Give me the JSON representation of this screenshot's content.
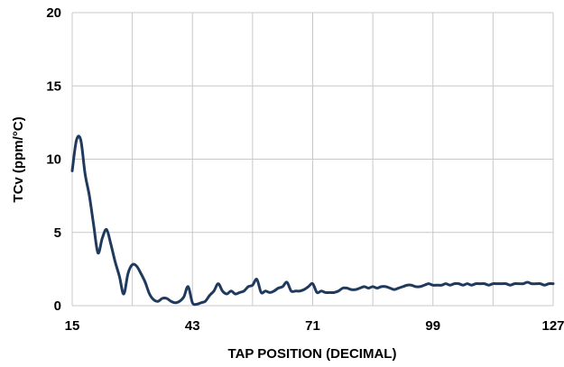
{
  "chart_data": {
    "type": "line",
    "title": "",
    "xlabel": "TAP POSITION (DECIMAL)",
    "ylabel": "TCv (ppm/°C)",
    "xlim": [
      15,
      127
    ],
    "ylim": [
      0,
      20
    ],
    "x_ticks": [
      "15",
      "43",
      "71",
      "99",
      "127"
    ],
    "y_ticks": [
      "0",
      "5",
      "10",
      "15",
      "20"
    ],
    "grid": true,
    "legend": "none",
    "line_color": "#1f3a5c",
    "grid_color": "#c8c8c8",
    "series": [
      {
        "x": [
          15,
          16,
          17,
          18,
          19,
          20,
          21,
          22,
          23,
          24,
          25,
          26,
          27,
          28,
          29,
          30,
          31,
          32,
          33,
          34,
          35,
          36,
          37,
          38,
          39,
          40,
          41,
          42,
          43,
          44,
          45,
          46,
          47,
          48,
          49,
          50,
          51,
          52,
          53,
          54,
          55,
          56,
          57,
          58,
          59,
          60,
          61,
          62,
          63,
          64,
          65,
          66,
          67,
          68,
          69,
          70,
          71,
          72,
          73,
          74,
          75,
          76,
          77,
          78,
          79,
          80,
          81,
          82,
          83,
          84,
          85,
          86,
          87,
          88,
          89,
          90,
          91,
          92,
          93,
          94,
          95,
          96,
          97,
          98,
          99,
          100,
          101,
          102,
          103,
          104,
          105,
          106,
          107,
          108,
          109,
          110,
          111,
          112,
          113,
          114,
          115,
          116,
          117,
          118,
          119,
          120,
          121,
          122,
          123,
          124,
          125,
          126,
          127
        ],
        "values": [
          9.2,
          11.3,
          11.3,
          9.0,
          7.5,
          5.5,
          3.6,
          4.6,
          5.2,
          4.2,
          3.0,
          2.0,
          0.8,
          2.2,
          2.8,
          2.7,
          2.2,
          1.6,
          0.8,
          0.4,
          0.3,
          0.5,
          0.5,
          0.3,
          0.2,
          0.3,
          0.6,
          1.3,
          0.2,
          0.1,
          0.2,
          0.3,
          0.7,
          1.0,
          1.5,
          1.0,
          0.8,
          1.0,
          0.8,
          0.9,
          1.0,
          1.3,
          1.4,
          1.8,
          0.9,
          1.0,
          0.9,
          1.0,
          1.2,
          1.3,
          1.6,
          1.0,
          1.0,
          1.0,
          1.1,
          1.3,
          1.5,
          0.9,
          1.0,
          0.9,
          0.9,
          0.9,
          1.0,
          1.2,
          1.2,
          1.1,
          1.1,
          1.2,
          1.3,
          1.2,
          1.3,
          1.2,
          1.3,
          1.3,
          1.2,
          1.1,
          1.2,
          1.3,
          1.4,
          1.4,
          1.3,
          1.3,
          1.4,
          1.5,
          1.4,
          1.4,
          1.4,
          1.5,
          1.4,
          1.5,
          1.5,
          1.4,
          1.5,
          1.4,
          1.5,
          1.5,
          1.5,
          1.4,
          1.5,
          1.5,
          1.5,
          1.5,
          1.4,
          1.5,
          1.5,
          1.5,
          1.6,
          1.5,
          1.5,
          1.5,
          1.4,
          1.5,
          1.5
        ]
      }
    ]
  }
}
